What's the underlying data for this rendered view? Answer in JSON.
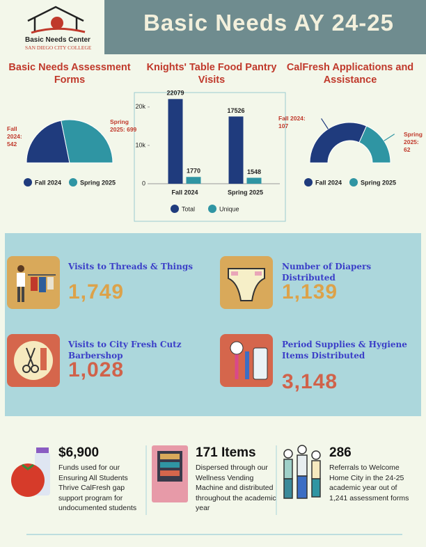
{
  "header": {
    "logo_name": "Basic Needs Center",
    "logo_college": "SAN DIEGO CITY COLLEGE",
    "title": "Basic Needs AY 24-25"
  },
  "chart_data": [
    {
      "type": "pie",
      "title": "Basic Needs Assessment Forms",
      "categories": [
        "Fall 2024",
        "Spring 2025"
      ],
      "values": [
        542,
        699
      ],
      "value_labels": [
        "Fall 2024: 542",
        "Spring 2025: 699"
      ],
      "colors": [
        "#1f3b7d",
        "#2f95a3"
      ]
    },
    {
      "type": "bar",
      "title": "Knights' Table Food Pantry Visits",
      "categories": [
        "Fall 2024",
        "Spring 2025"
      ],
      "series": [
        {
          "name": "Total",
          "color": "#1f3b7d",
          "values": [
            22079,
            17526
          ]
        },
        {
          "name": "Unique",
          "color": "#2f95a3",
          "values": [
            1770,
            1548
          ]
        }
      ],
      "ylim": [
        0,
        22500
      ],
      "yticks": [
        0,
        {
          "value": 10000,
          "label": "10k"
        },
        {
          "value": 20000,
          "label": "20k"
        }
      ]
    },
    {
      "type": "donut",
      "title": "CalFresh Applications and Assistance",
      "categories": [
        "Fall 2024",
        "Spring 2025"
      ],
      "values": [
        107,
        62
      ],
      "value_labels": [
        "Fall 2024: 107",
        "Spring 2025: 62"
      ],
      "colors": [
        "#1f3b7d",
        "#2f95a3"
      ]
    }
  ],
  "highlights": [
    {
      "label": "Visits to Threads & Things",
      "value": "1,749"
    },
    {
      "label": "Number of Diapers Distributed",
      "value": "1,139"
    },
    {
      "label": "Visits to City Fresh Cutz Barbershop",
      "value": "1,028"
    },
    {
      "label": "Period Supplies & Hygiene Items Distributed",
      "value": "3,148"
    }
  ],
  "stats": [
    {
      "value": "$6,900",
      "text": "Funds used for our Ensuring All Students Thrive CalFresh gap support program for undocumented students"
    },
    {
      "value": "171 Items",
      "text": "Dispersed through our Wellness Vending Machine and distributed throughout the academic year"
    },
    {
      "value": "286",
      "text": "Referrals to Welcome Home City in the 24-25 academic year out of 1,241 assessment forms"
    }
  ]
}
